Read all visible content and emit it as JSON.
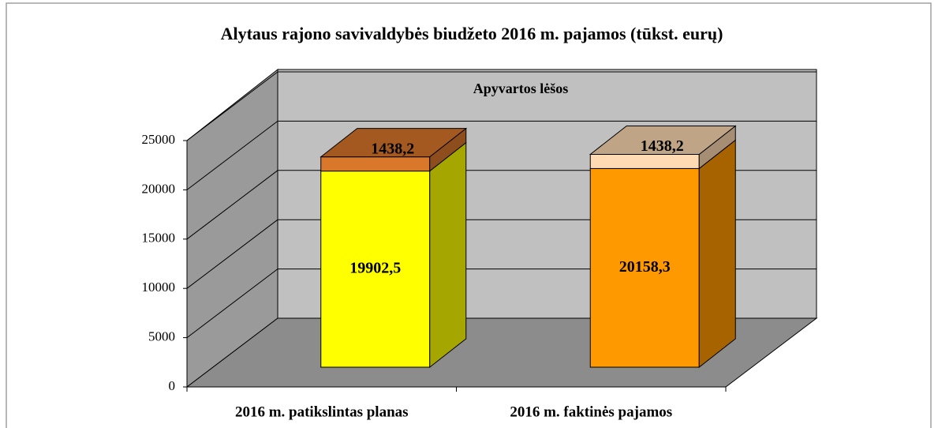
{
  "chart_data": {
    "type": "bar3d_stacked",
    "title": "Alytaus rajono savivaldybės biudžeto 2016 m. pajamos (tūkst. eurų)",
    "annotation": "Apyvartos lėšos",
    "categories": [
      "2016 m. patikslintas planas",
      "2016 m. faktinės pajamos"
    ],
    "series": [
      {
        "values": [
          19902.5,
          20158.3
        ],
        "value_labels": [
          "19902,5",
          "20158,3"
        ],
        "colors": [
          "#ffff00",
          "#ff9900"
        ]
      },
      {
        "values": [
          1438.2,
          1438.2
        ],
        "value_labels": [
          "1438,2",
          "1438,2"
        ],
        "colors": [
          "#d9772b",
          "#ffdab3"
        ]
      }
    ],
    "ylim": [
      0,
      25000
    ],
    "yticks": [
      0,
      5000,
      10000,
      15000,
      20000,
      25000
    ],
    "grid": true
  }
}
